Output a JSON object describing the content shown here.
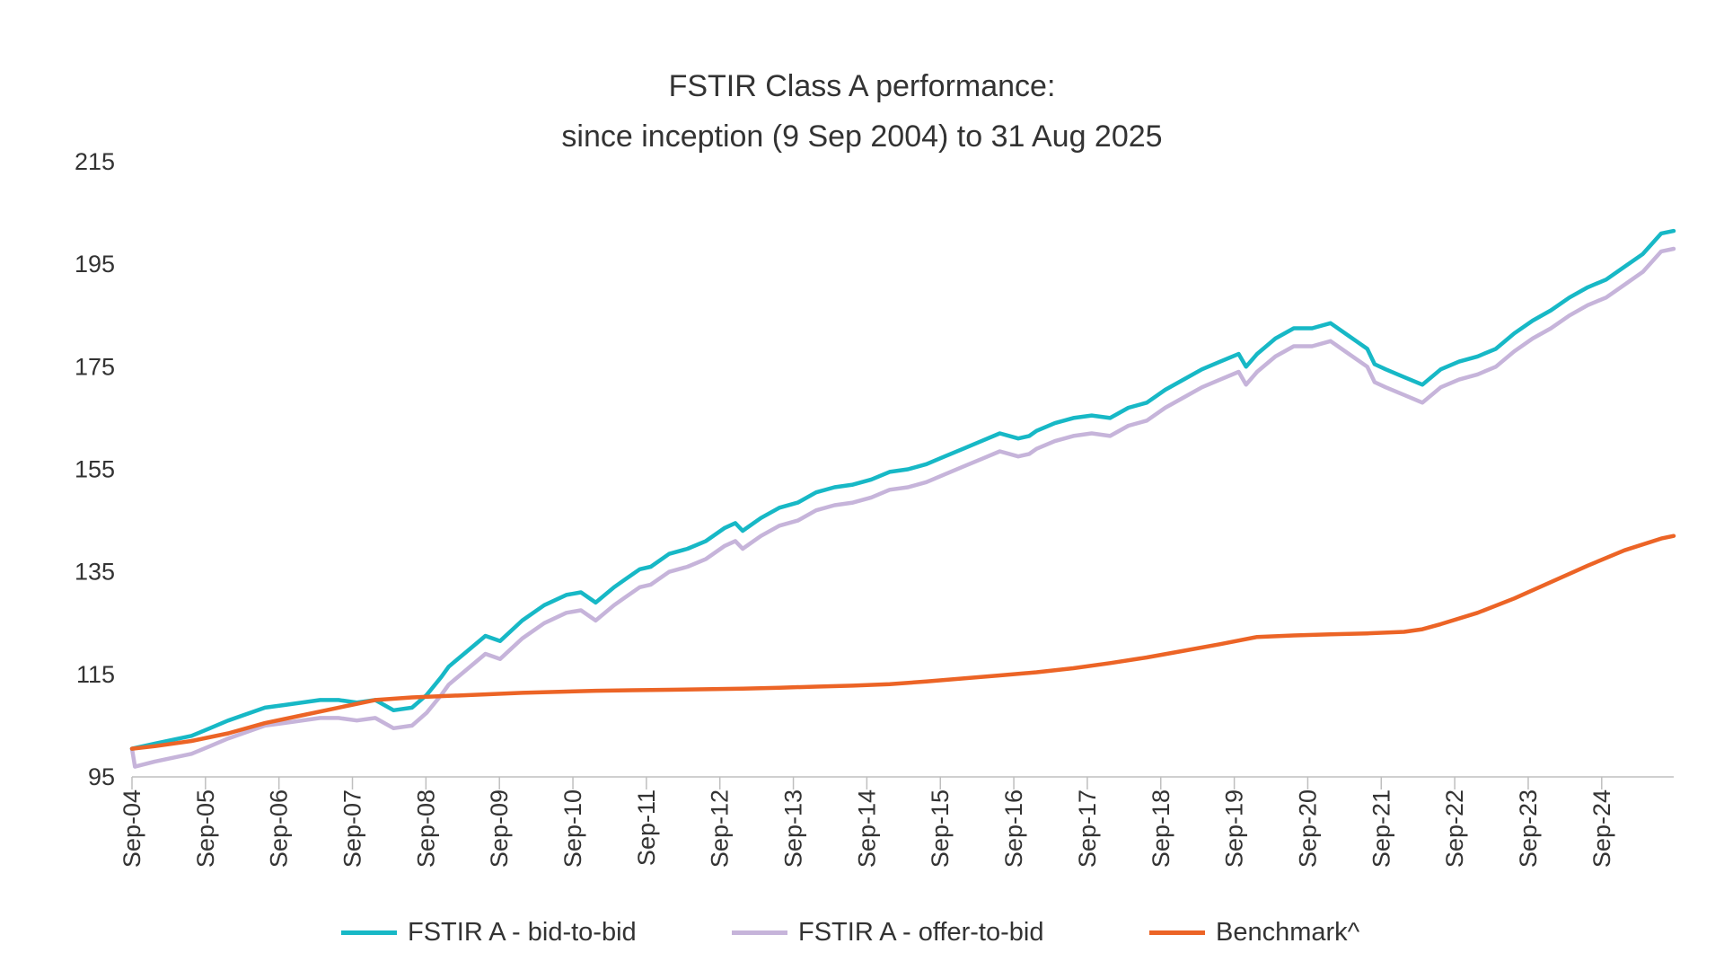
{
  "chart_data": {
    "type": "line",
    "title": "FSTIR Class A performance:",
    "subtitle": "since inception (9 Sep 2004) to 31 Aug 2025",
    "xlabel": "",
    "ylabel": "",
    "ylim": [
      95,
      215
    ],
    "yticks": [
      "95",
      "115",
      "135",
      "155",
      "175",
      "195",
      "215"
    ],
    "xticks": [
      "Sep-04",
      "Sep-05",
      "Sep-06",
      "Sep-07",
      "Sep-08",
      "Sep-09",
      "Sep-10",
      "Sep-11",
      "Sep-12",
      "Sep-13",
      "Sep-14",
      "Sep-15",
      "Sep-16",
      "Sep-17",
      "Sep-18",
      "Sep-19",
      "Sep-20",
      "Sep-21",
      "Sep-22",
      "Sep-23",
      "Sep-24"
    ],
    "xlim": [
      2004.69,
      2025.67
    ],
    "grid": false,
    "legend_position": "bottom",
    "series": [
      {
        "name": "FSTIR A - bid-to-bid",
        "color": "#17B8C6",
        "x": [
          2004.69,
          2005.0,
          2005.5,
          2005.75,
          2006.0,
          2006.5,
          2006.75,
          2007.25,
          2007.5,
          2007.75,
          2008.0,
          2008.25,
          2008.5,
          2008.7,
          2008.9,
          2009.0,
          2009.25,
          2009.5,
          2009.7,
          2010.0,
          2010.3,
          2010.6,
          2010.8,
          2011.0,
          2011.25,
          2011.4,
          2011.6,
          2011.75,
          2012.0,
          2012.25,
          2012.5,
          2012.75,
          2012.9,
          2013.0,
          2013.25,
          2013.5,
          2013.75,
          2014.0,
          2014.25,
          2014.5,
          2014.75,
          2015.0,
          2015.25,
          2015.5,
          2015.75,
          2016.0,
          2016.25,
          2016.5,
          2016.75,
          2016.9,
          2017.0,
          2017.25,
          2017.5,
          2017.75,
          2018.0,
          2018.25,
          2018.5,
          2018.75,
          2019.0,
          2019.25,
          2019.5,
          2019.75,
          2019.85,
          2020.0,
          2020.25,
          2020.5,
          2020.75,
          2021.0,
          2021.25,
          2021.5,
          2021.6,
          2021.75,
          2022.0,
          2022.25,
          2022.5,
          2022.75,
          2023.0,
          2023.25,
          2023.5,
          2023.75,
          2024.0,
          2024.25,
          2024.5,
          2024.75,
          2025.0,
          2025.25,
          2025.5,
          2025.67
        ],
        "y": [
          100.5,
          101.5,
          103.0,
          104.5,
          106.0,
          108.5,
          109.0,
          110.0,
          110.0,
          109.5,
          110.0,
          108.0,
          108.5,
          111.0,
          114.5,
          116.5,
          119.5,
          122.5,
          121.5,
          125.5,
          128.5,
          130.5,
          131.0,
          129.0,
          132.0,
          133.5,
          135.5,
          136.0,
          138.5,
          139.5,
          141.0,
          143.5,
          144.5,
          143.0,
          145.5,
          147.5,
          148.5,
          150.5,
          151.5,
          152.0,
          153.0,
          154.5,
          155.0,
          156.0,
          157.5,
          159.0,
          160.5,
          162.0,
          161.0,
          161.5,
          162.5,
          164.0,
          165.0,
          165.5,
          165.0,
          167.0,
          168.0,
          170.5,
          172.5,
          174.5,
          176.0,
          177.5,
          175.0,
          177.5,
          180.5,
          182.5,
          182.5,
          183.5,
          181.0,
          178.5,
          175.5,
          174.5,
          173.0,
          171.5,
          174.5,
          176.0,
          177.0,
          178.5,
          181.5,
          184.0,
          186.0,
          188.5,
          190.5,
          192.0,
          194.5,
          197.0,
          201.0,
          201.5
        ]
      },
      {
        "name": "FSTIR A - offer-to-bid",
        "color": "#C6B4DA",
        "x": [
          2004.69,
          2004.73,
          2005.0,
          2005.5,
          2005.75,
          2006.0,
          2006.5,
          2006.75,
          2007.25,
          2007.5,
          2007.75,
          2008.0,
          2008.25,
          2008.5,
          2008.7,
          2008.9,
          2009.0,
          2009.25,
          2009.5,
          2009.7,
          2010.0,
          2010.3,
          2010.6,
          2010.8,
          2011.0,
          2011.25,
          2011.4,
          2011.6,
          2011.75,
          2012.0,
          2012.25,
          2012.5,
          2012.75,
          2012.9,
          2013.0,
          2013.25,
          2013.5,
          2013.75,
          2014.0,
          2014.25,
          2014.5,
          2014.75,
          2015.0,
          2015.25,
          2015.5,
          2015.75,
          2016.0,
          2016.25,
          2016.5,
          2016.75,
          2016.9,
          2017.0,
          2017.25,
          2017.5,
          2017.75,
          2018.0,
          2018.25,
          2018.5,
          2018.75,
          2019.0,
          2019.25,
          2019.5,
          2019.75,
          2019.85,
          2020.0,
          2020.25,
          2020.5,
          2020.75,
          2021.0,
          2021.25,
          2021.5,
          2021.6,
          2021.75,
          2022.0,
          2022.25,
          2022.5,
          2022.75,
          2023.0,
          2023.25,
          2023.5,
          2023.75,
          2024.0,
          2024.25,
          2024.5,
          2024.75,
          2025.0,
          2025.25,
          2025.5,
          2025.67
        ],
        "y": [
          100.5,
          97.0,
          98.0,
          99.5,
          101.0,
          102.5,
          105.0,
          105.5,
          106.5,
          106.5,
          106.0,
          106.5,
          104.5,
          105.0,
          107.5,
          111.0,
          113.0,
          116.0,
          119.0,
          118.0,
          122.0,
          125.0,
          127.0,
          127.5,
          125.5,
          128.5,
          130.0,
          132.0,
          132.5,
          135.0,
          136.0,
          137.5,
          140.0,
          141.0,
          139.5,
          142.0,
          144.0,
          145.0,
          147.0,
          148.0,
          148.5,
          149.5,
          151.0,
          151.5,
          152.5,
          154.0,
          155.5,
          157.0,
          158.5,
          157.5,
          158.0,
          159.0,
          160.5,
          161.5,
          162.0,
          161.5,
          163.5,
          164.5,
          167.0,
          169.0,
          171.0,
          172.5,
          174.0,
          171.5,
          174.0,
          177.0,
          179.0,
          179.0,
          180.0,
          177.5,
          175.0,
          172.0,
          171.0,
          169.5,
          168.0,
          171.0,
          172.5,
          173.5,
          175.0,
          178.0,
          180.5,
          182.5,
          185.0,
          187.0,
          188.5,
          191.0,
          193.5,
          197.5,
          198.0
        ]
      },
      {
        "name": "Benchmark^",
        "color": "#EC6426",
        "x": [
          2004.69,
          2005.0,
          2005.5,
          2006.0,
          2006.5,
          2007.0,
          2007.5,
          2008.0,
          2008.5,
          2009.0,
          2009.5,
          2010.0,
          2010.5,
          2011.0,
          2011.5,
          2012.0,
          2012.5,
          2013.0,
          2013.5,
          2014.0,
          2014.5,
          2015.0,
          2015.5,
          2016.0,
          2016.5,
          2017.0,
          2017.5,
          2018.0,
          2018.5,
          2019.0,
          2019.5,
          2020.0,
          2020.5,
          2021.0,
          2021.5,
          2022.0,
          2022.25,
          2022.5,
          2023.0,
          2023.5,
          2024.0,
          2024.5,
          2025.0,
          2025.5,
          2025.67
        ],
        "y": [
          100.5,
          101.0,
          102.0,
          103.5,
          105.5,
          107.0,
          108.5,
          110.0,
          110.5,
          110.8,
          111.1,
          111.4,
          111.6,
          111.8,
          111.9,
          112.0,
          112.1,
          112.2,
          112.4,
          112.6,
          112.8,
          113.1,
          113.6,
          114.2,
          114.8,
          115.4,
          116.2,
          117.2,
          118.3,
          119.6,
          120.9,
          122.3,
          122.6,
          122.8,
          123.0,
          123.3,
          123.8,
          124.8,
          127.0,
          129.8,
          133.0,
          136.2,
          139.2,
          141.5,
          142.0
        ]
      }
    ]
  }
}
